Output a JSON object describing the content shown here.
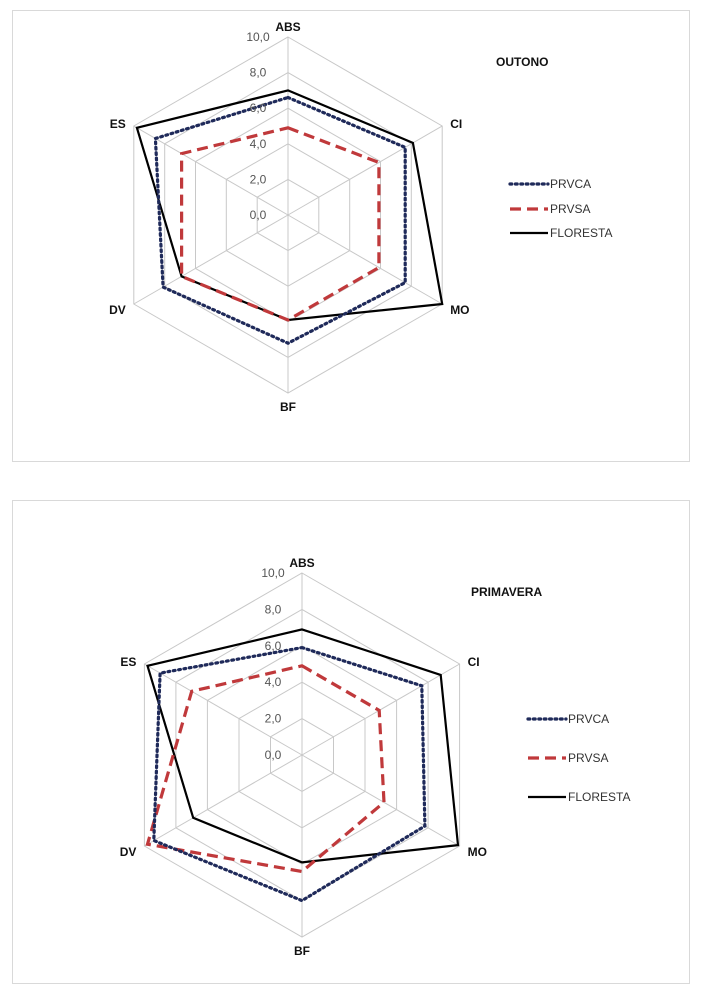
{
  "chart_data": [
    {
      "type": "radar",
      "title": "OUTONO",
      "axes": [
        "ABS",
        "CI",
        "MO",
        "BF",
        "DV",
        "ES"
      ],
      "scale": {
        "min": 0,
        "max": 10,
        "step": 2
      },
      "tick_labels": [
        "0,0",
        "2,0",
        "4,0",
        "6,0",
        "8,0",
        "10,0"
      ],
      "series": [
        {
          "name": "PRVCA",
          "values": [
            6.6,
            7.6,
            7.6,
            7.2,
            8.1,
            8.6
          ]
        },
        {
          "name": "PRVSA",
          "values": [
            4.9,
            5.9,
            5.9,
            5.9,
            6.9,
            6.9
          ]
        },
        {
          "name": "FLORESTA",
          "values": [
            7.0,
            8.1,
            10.0,
            5.9,
            6.9,
            9.8
          ]
        }
      ],
      "legend_position": "right",
      "grid": true
    },
    {
      "type": "radar",
      "title": "PRIMAVERA",
      "axes": [
        "ABS",
        "CI",
        "MO",
        "BF",
        "DV",
        "ES"
      ],
      "scale": {
        "min": 0,
        "max": 10,
        "step": 2
      },
      "tick_labels": [
        "0,0",
        "2,0",
        "4,0",
        "6,0",
        "8,0",
        "10,0"
      ],
      "series": [
        {
          "name": "PRVCA",
          "values": [
            5.9,
            7.6,
            7.8,
            8.0,
            9.4,
            9.0
          ]
        },
        {
          "name": "PRVSA",
          "values": [
            4.9,
            4.9,
            5.2,
            6.4,
            9.8,
            7.0
          ]
        },
        {
          "name": "FLORESTA",
          "values": [
            6.9,
            8.8,
            9.9,
            5.9,
            6.9,
            9.8
          ]
        }
      ],
      "legend_position": "right",
      "grid": true
    }
  ],
  "styles": {
    "PRVCA": {
      "color": "#1f2a5a",
      "dash": "1.8 3.6",
      "width": 3.2
    },
    "PRVSA": {
      "color": "#c0393b",
      "dash": "11 6",
      "width": 3.2
    },
    "FLORESTA": {
      "color": "#000000",
      "dash": "",
      "width": 2.2
    }
  }
}
